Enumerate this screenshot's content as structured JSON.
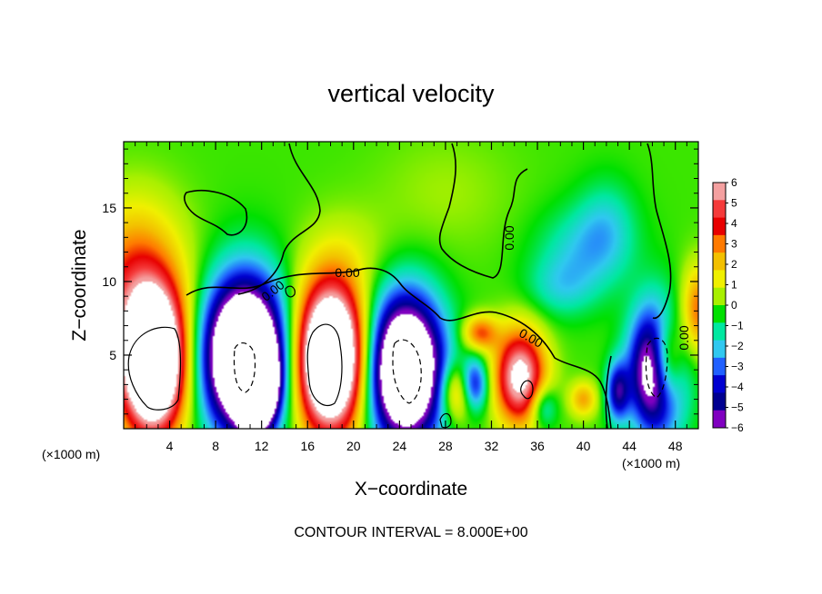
{
  "chart_data": {
    "type": "heatmap",
    "title": "vertical velocity",
    "xlabel": "X−coordinate",
    "ylabel": "Z−coordinate",
    "x_unit_left": "(×1000 m)",
    "x_unit_right": "(×1000 m)",
    "footer": "CONTOUR INTERVAL = 8.000E+00",
    "xlim": [
      0,
      50
    ],
    "ylim": [
      0,
      19.5
    ],
    "x_ticks": [
      4,
      8,
      12,
      16,
      20,
      24,
      28,
      32,
      36,
      40,
      44,
      48
    ],
    "x_tick_labels": [
      "4",
      "8",
      "12",
      "16",
      "20",
      "24",
      "28",
      "32",
      "36",
      "40",
      "44",
      "48"
    ],
    "y_ticks": [
      5,
      10,
      15
    ],
    "y_tick_labels": [
      "5",
      "10",
      "15"
    ],
    "colorbar": {
      "levels": [
        6,
        5,
        4,
        3,
        2,
        1,
        0,
        -1,
        -2,
        -3,
        -4,
        -5,
        -6
      ],
      "labels": [
        "6",
        "5",
        "4",
        "3",
        "2",
        "1",
        "0",
        "−1",
        "−2",
        "−3",
        "−4",
        "−5",
        "−6"
      ],
      "colors": [
        "#f4a0a0",
        "#f53b3b",
        "#e80000",
        "#ff7a00",
        "#f3c000",
        "#f0f000",
        "#a8f000",
        "#00e000",
        "#00e8a0",
        "#30c8f0",
        "#2060ff",
        "#0000d0",
        "#000090",
        "#8000c0"
      ]
    },
    "contour_labels": [
      "0.00",
      "0.00",
      "0.00",
      "0.00",
      "0.00"
    ],
    "blobs": [
      {
        "x": 2.5,
        "z": 4.5,
        "rx": 2.8,
        "rz": 4.8,
        "v": 14
      },
      {
        "x": 10.5,
        "z": 5.0,
        "rx": 3.5,
        "rz": 5.0,
        "v": -14
      },
      {
        "x": 11.5,
        "z": 3.0,
        "rx": 1.5,
        "rz": 2.5,
        "v": -16
      },
      {
        "x": 18.0,
        "z": 4.8,
        "rx": 3.0,
        "rz": 5.0,
        "v": 14
      },
      {
        "x": 24.5,
        "z": 4.0,
        "rx": 3.2,
        "rz": 4.8,
        "v": -13
      },
      {
        "x": 29.0,
        "z": 2.5,
        "rx": 1.5,
        "rz": 2.0,
        "v": 4
      },
      {
        "x": 30.5,
        "z": 3.0,
        "rx": 1.2,
        "rz": 1.8,
        "v": -5
      },
      {
        "x": 31.0,
        "z": 6.5,
        "rx": 1.5,
        "rz": 1.2,
        "v": 4
      },
      {
        "x": 34.5,
        "z": 3.5,
        "rx": 2.2,
        "rz": 3.2,
        "v": 8
      },
      {
        "x": 36.5,
        "z": 1.5,
        "rx": 1.2,
        "rz": 1.5,
        "v": -3
      },
      {
        "x": 40.0,
        "z": 2.0,
        "rx": 1.2,
        "rz": 1.2,
        "v": 3
      },
      {
        "x": 43.0,
        "z": 2.5,
        "rx": 1.0,
        "rz": 2.0,
        "v": -5
      },
      {
        "x": 46.5,
        "z": 4.0,
        "rx": 2.2,
        "rz": 4.0,
        "v": -12
      },
      {
        "x": 47.2,
        "z": 4.5,
        "rx": 1.5,
        "rz": 3.0,
        "v": 9
      },
      {
        "x": 50.0,
        "z": 8.0,
        "rx": 1.5,
        "rz": 3.0,
        "v": 4
      },
      {
        "x": 0.5,
        "z": 9.0,
        "rx": 5.0,
        "rz": 4.5,
        "v": 3
      },
      {
        "x": 1.0,
        "z": 13.0,
        "rx": 4.0,
        "rz": 4.0,
        "v": 1.5
      },
      {
        "x": 40.0,
        "z": 12.0,
        "rx": 4.0,
        "rz": 3.0,
        "v": -2
      },
      {
        "x": 42.0,
        "z": 14.0,
        "rx": 2.5,
        "rz": 3.0,
        "v": -1.5
      },
      {
        "x": 38.0,
        "z": 9.5,
        "rx": 3.0,
        "rz": 2.0,
        "v": -1.5
      },
      {
        "x": 28.0,
        "z": 16.0,
        "rx": 6.0,
        "rz": 4.0,
        "v": 0.6
      },
      {
        "x": 20.0,
        "z": 12.0,
        "rx": 4.0,
        "rz": 3.0,
        "v": 0.7
      }
    ]
  }
}
